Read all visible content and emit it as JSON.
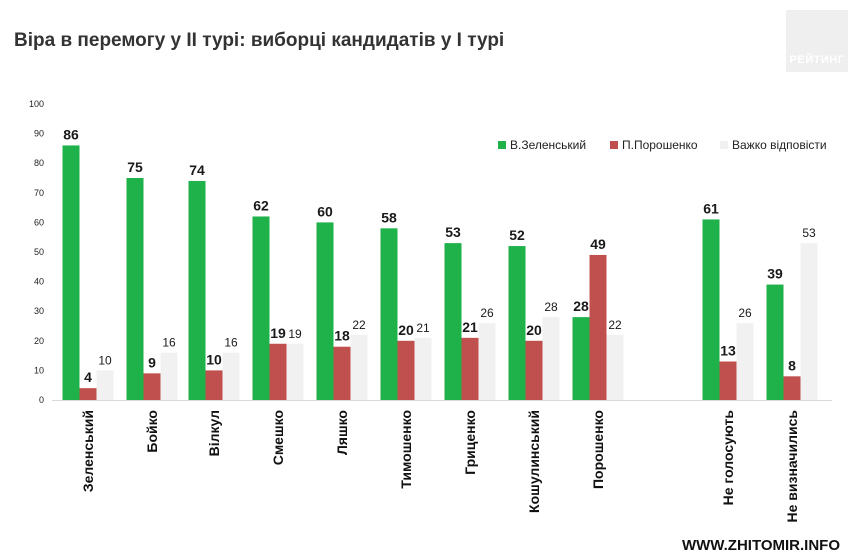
{
  "header": {
    "title": "Віра в перемогу у ІІ турі: виборці кандидатів у І турі",
    "logo_text": "РЕЙТИНГ"
  },
  "footer": {
    "site": "WWW.ZHITOMIR.INFO"
  },
  "colors": {
    "zelensky": "#1fb24a",
    "poroshenko": "#c0504d",
    "hard": "#f1f1f1"
  },
  "chart_data": {
    "type": "bar",
    "title": "Віра в перемогу у ІІ турі: виборці кандидатів у І турі",
    "xlabel": "",
    "ylabel": "",
    "ylim": [
      0,
      100
    ],
    "yticks": [
      0,
      10,
      20,
      30,
      40,
      50,
      60,
      70,
      80,
      90,
      100
    ],
    "legend_position": "top-right",
    "categories": [
      "Зеленський",
      "Бойко",
      "Вілкул",
      "Смешко",
      "Ляшко",
      "Тимошенко",
      "Гриценко",
      "Кошулинський",
      "Порошенко",
      "Не голосують",
      "Не визначились"
    ],
    "series": [
      {
        "name": "В.Зеленський",
        "values": [
          86,
          75,
          74,
          62,
          60,
          58,
          53,
          52,
          28,
          61,
          39
        ]
      },
      {
        "name": "П.Порошенко",
        "values": [
          4,
          9,
          10,
          19,
          18,
          20,
          21,
          20,
          49,
          13,
          8
        ]
      },
      {
        "name": "Важко відповісти",
        "values": [
          10,
          16,
          16,
          19,
          22,
          21,
          26,
          28,
          22,
          26,
          53
        ]
      }
    ]
  }
}
